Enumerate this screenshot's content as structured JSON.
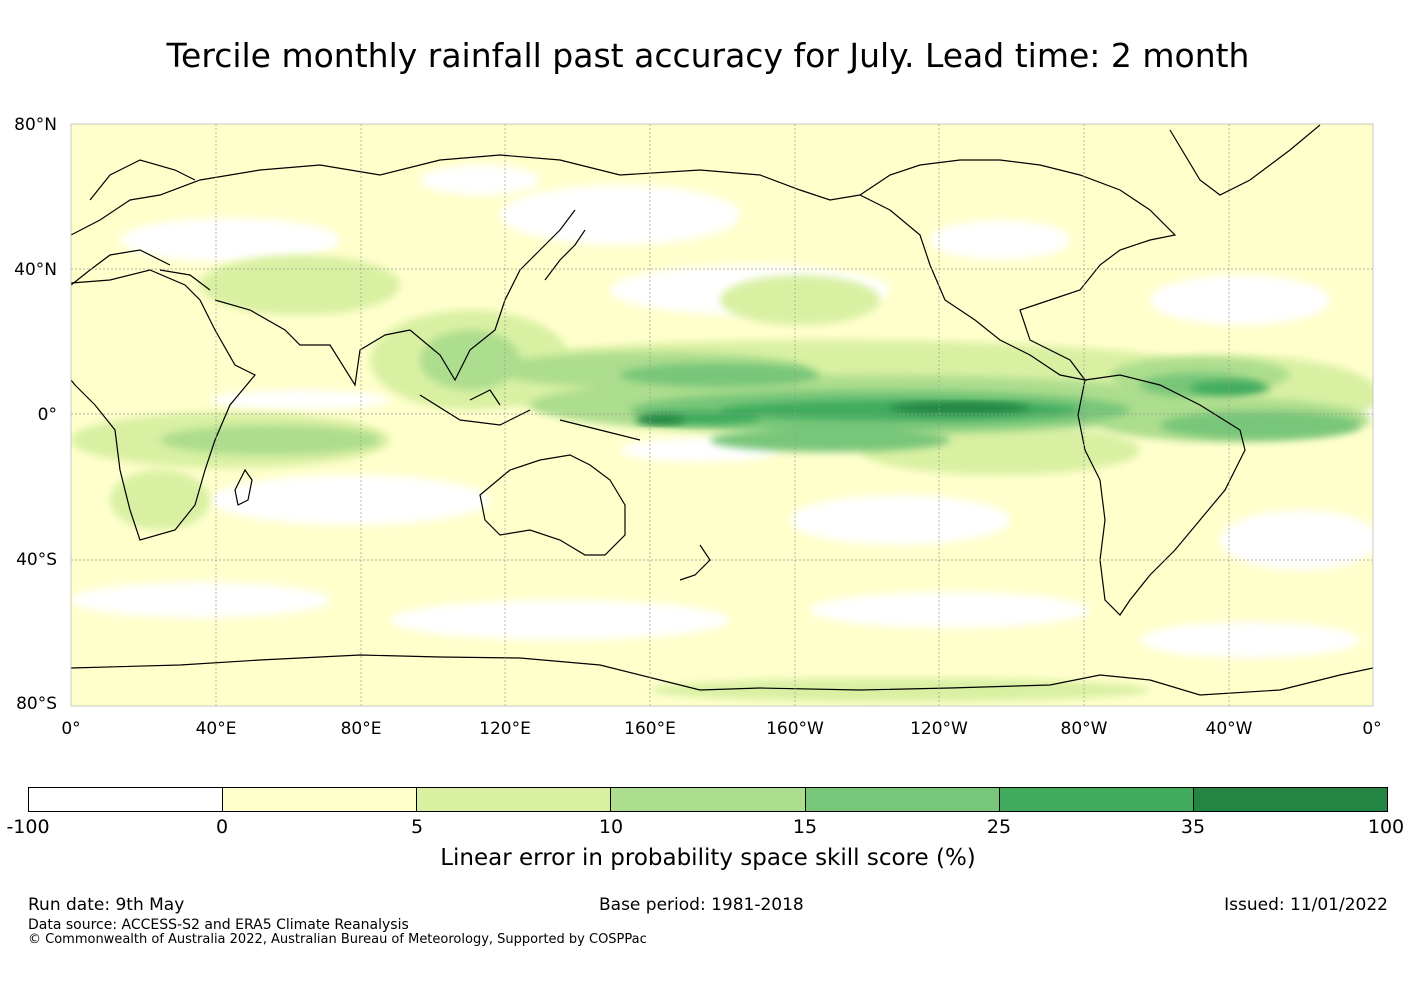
{
  "title": "Tercile monthly rainfall past accuracy for July. Lead time: 2 month",
  "map": {
    "lat_labels": [
      "80°N",
      "40°N",
      "0°",
      "40°S",
      "80°S"
    ],
    "lon_labels": [
      "0°",
      "40°E",
      "80°E",
      "120°E",
      "160°E",
      "160°W",
      "120°W",
      "80°W",
      "40°W",
      "0°"
    ],
    "field": "skill score",
    "colors": {
      "ocean_base": "#ffffcc",
      "land_base": "#ffffcc",
      "coastline": "#000000",
      "grid": "#999999"
    }
  },
  "colorbar": {
    "ticks": [
      "-100",
      "0",
      "5",
      "10",
      "15",
      "25",
      "35",
      "100"
    ],
    "colors": [
      "#ffffff",
      "#ffffcc",
      "#d9f0a3",
      "#addd8e",
      "#78c679",
      "#41ab5d",
      "#238443"
    ],
    "label": "Linear error in probability space skill score (%)"
  },
  "footer": {
    "run_date": "Run date: 9th May",
    "base_period": "Base period: 1981-2018",
    "issued": "Issued: 11/01/2022",
    "data_source": "Data source: ACCESS-S2 and ERA5 Climate Reanalysis",
    "copyright": "© Commonwealth of Australia 2022, Australian Bureau of Meteorology, Supported by COSPPac"
  }
}
